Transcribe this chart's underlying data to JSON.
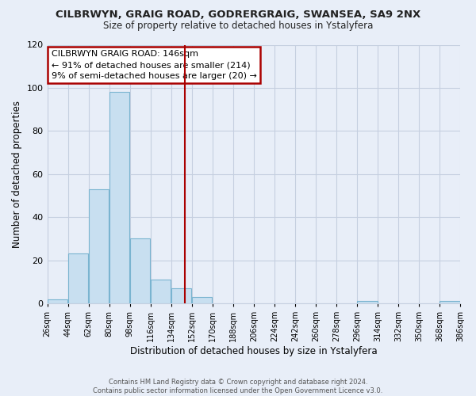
{
  "title": "CILBRWYN, GRAIG ROAD, GODRERGRAIG, SWANSEA, SA9 2NX",
  "subtitle": "Size of property relative to detached houses in Ystalyfera",
  "xlabel": "Distribution of detached houses by size in Ystalyfera",
  "ylabel": "Number of detached properties",
  "footer_line1": "Contains HM Land Registry data © Crown copyright and database right 2024.",
  "footer_line2": "Contains public sector information licensed under the Open Government Licence v3.0.",
  "bin_labels": [
    "26sqm",
    "44sqm",
    "62sqm",
    "80sqm",
    "98sqm",
    "116sqm",
    "134sqm",
    "152sqm",
    "170sqm",
    "188sqm",
    "206sqm",
    "224sqm",
    "242sqm",
    "260sqm",
    "278sqm",
    "296sqm",
    "314sqm",
    "332sqm",
    "350sqm",
    "368sqm",
    "386sqm"
  ],
  "bar_values": [
    2,
    23,
    53,
    98,
    30,
    11,
    7,
    3,
    0,
    0,
    0,
    0,
    0,
    0,
    0,
    1,
    0,
    0,
    0,
    1
  ],
  "bin_edges": [
    26,
    44,
    62,
    80,
    98,
    116,
    134,
    152,
    170,
    188,
    206,
    224,
    242,
    260,
    278,
    296,
    314,
    332,
    350,
    368,
    386
  ],
  "bar_color": "#c8dff0",
  "bar_edge_color": "#7ab4d0",
  "vline_x": 146,
  "vline_color": "#aa0000",
  "annotation_title": "CILBRWYN GRAIG ROAD: 146sqm",
  "annotation_line1": "← 91% of detached houses are smaller (214)",
  "annotation_line2": "9% of semi-detached houses are larger (20) →",
  "annotation_box_color": "#ffffff",
  "annotation_border_color": "#aa0000",
  "ylim": [
    0,
    120
  ],
  "yticks": [
    0,
    20,
    40,
    60,
    80,
    100,
    120
  ],
  "background_color": "#e8eef8",
  "plot_background": "#e8eef8",
  "grid_color": "#c5cfe0"
}
